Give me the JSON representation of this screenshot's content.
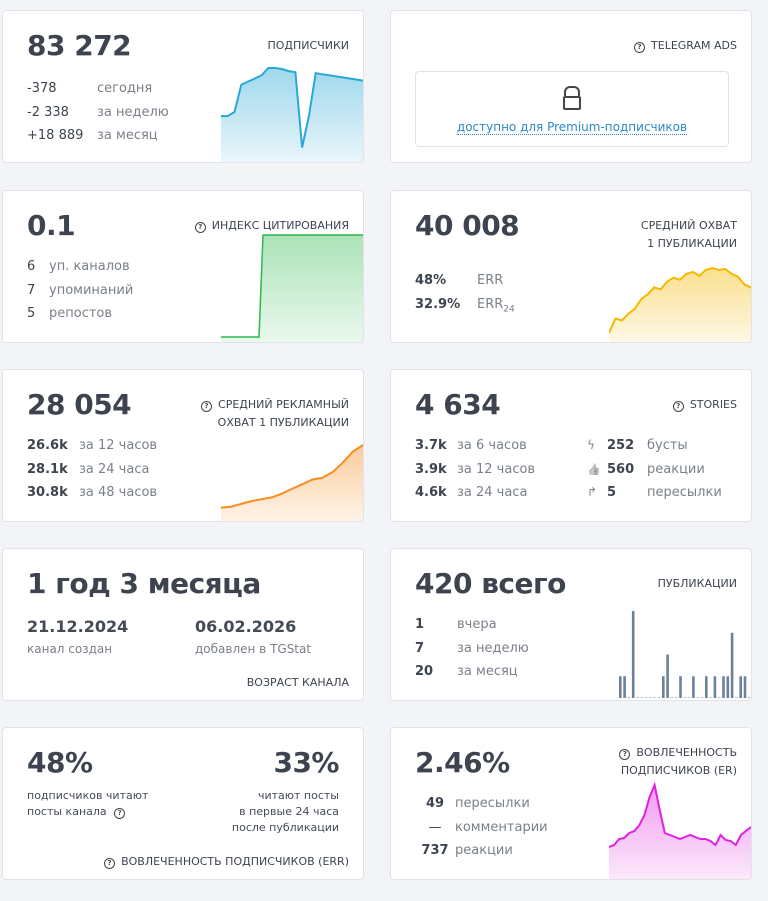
{
  "subscribers": {
    "value": "83 272",
    "title": "ПОДПИСЧИКИ",
    "rows": [
      {
        "v": "-378",
        "l": "сегодня",
        "c": "#f05a5a"
      },
      {
        "v": "-2 338",
        "l": "за неделю",
        "c": "#f05a5a"
      },
      {
        "v": "+18 889",
        "l": "за месяц",
        "c": "#3ecf8e"
      }
    ],
    "color": "#27a8d6",
    "series": [
      40,
      40,
      44,
      70,
      73,
      76,
      79,
      86,
      86,
      85,
      83,
      82,
      10,
      40,
      81,
      80,
      79,
      78,
      77,
      76,
      75,
      74
    ]
  },
  "ads": {
    "title": "TELEGRAM ADS",
    "lock_text": "доступно для Premium-подписчиков",
    "icon": "lock-icon"
  },
  "citation": {
    "value": "0.1",
    "title": "ИНДЕКС ЦИТИРОВАНИЯ",
    "rows": [
      {
        "v": "6",
        "l": "уп. каналов"
      },
      {
        "v": "7",
        "l": "упоминаний"
      },
      {
        "v": "5",
        "l": "репостов"
      }
    ],
    "color": "#2db84b"
  },
  "reach": {
    "value": "40 008",
    "title_1": "СРЕДНИЙ ОХВАТ",
    "title_2": "1 ПУБЛИКАЦИИ",
    "err": "48%",
    "err_label": "ERR",
    "err24": "32.9%",
    "err24_label": "ERR",
    "err24_sub": "24",
    "color": "#f5b800",
    "series": [
      5,
      20,
      18,
      25,
      30,
      40,
      45,
      52,
      50,
      58,
      62,
      60,
      66,
      68,
      64,
      70,
      72,
      70,
      71,
      66,
      63,
      55,
      52
    ]
  },
  "adreach": {
    "value": "28 054",
    "title_1": "СРЕДНИЙ РЕКЛАМНЫЙ",
    "title_2": "ОХВАТ 1 ПУБЛИКАЦИИ",
    "rows": [
      {
        "v": "26.6k",
        "l": "за 12 часов"
      },
      {
        "v": "28.1k",
        "l": "за 24 часа"
      },
      {
        "v": "30.8k",
        "l": "за 48 часов"
      }
    ],
    "color": "#f78c1f",
    "series": [
      10,
      11,
      14,
      17,
      19,
      21,
      25,
      30,
      35,
      40,
      42,
      48,
      58,
      70,
      77
    ]
  },
  "stories": {
    "value": "4 634",
    "title": "STORIES",
    "rows": [
      {
        "v": "3.7k",
        "l": "за 6 часов"
      },
      {
        "v": "3.9k",
        "l": "за 12 часов"
      },
      {
        "v": "4.6k",
        "l": "за 24 часа"
      }
    ],
    "stats": [
      {
        "icon": "bolt-icon",
        "glyph": "ϟ",
        "v": "252",
        "l": "бусты"
      },
      {
        "icon": "thumbs-up-icon",
        "glyph": "👍",
        "v": "560",
        "l": "реакции"
      },
      {
        "icon": "share-arrow-icon",
        "glyph": "↱",
        "v": "5",
        "l": "пересылки"
      }
    ]
  },
  "age": {
    "value": "1 год 3 месяца",
    "created": "21.12.2024",
    "created_label": "канал создан",
    "added": "06.02.2026",
    "added_label": "добавлен в TGStat",
    "title": "ВОЗРАСТ КАНАЛА"
  },
  "posts": {
    "value": "420 всего",
    "title": "ПУБЛИКАЦИИ",
    "rows": [
      {
        "v": "1",
        "l": "вчера"
      },
      {
        "v": "7",
        "l": "за неделю"
      },
      {
        "v": "20",
        "l": "за месяц"
      }
    ],
    "color": "#6b8299",
    "daily": [
      1,
      1,
      0,
      4,
      0,
      0,
      0,
      0,
      0,
      0,
      1,
      2,
      0,
      0,
      1,
      0,
      0,
      1,
      0,
      0,
      1,
      0,
      1,
      0,
      1,
      1,
      3,
      0,
      1,
      1,
      0
    ]
  },
  "err": {
    "left_value": "48%",
    "left_l1": "подписчиков читают",
    "left_l2": "посты канала",
    "right_value": "33%",
    "right_l1": "читают посты",
    "right_l2": "в первые 24 часа",
    "right_l3": "после публикации",
    "title": "ВОВЛЕЧЕННОСТЬ ПОДПИСЧИКОВ (ERR)"
  },
  "er": {
    "value": "2.46%",
    "title_1": "ВОВЛЕЧЕННОСТЬ",
    "title_2": "ПОДПИСЧИКОВ (ER)",
    "rows": [
      {
        "v": "49",
        "l": "пересылки"
      },
      {
        "v": "—",
        "l": "комментарии"
      },
      {
        "v": "737",
        "l": "реакции"
      }
    ],
    "color": "#e020e0",
    "series": [
      28,
      30,
      36,
      37,
      42,
      44,
      50,
      60,
      78,
      90,
      65,
      42,
      40,
      38,
      36,
      38,
      40,
      38,
      36,
      36,
      34,
      30,
      40,
      35,
      34,
      30,
      40,
      44,
      48
    ]
  }
}
